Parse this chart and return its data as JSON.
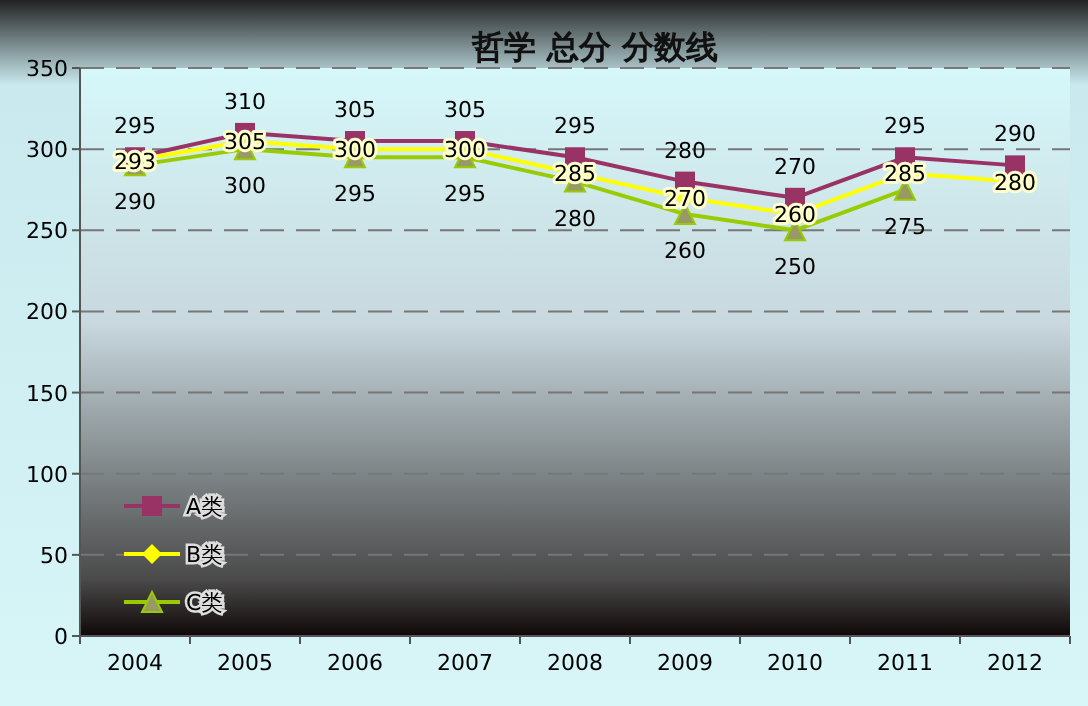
{
  "chart_data": {
    "type": "line",
    "title": "哲学    总分    分数线",
    "categories": [
      "2004",
      "2005",
      "2006",
      "2007",
      "2008",
      "2009",
      "2010",
      "2011",
      "2012"
    ],
    "series": [
      {
        "name": "A类",
        "color": "#993366",
        "marker": "square",
        "values": [
          295,
          310,
          305,
          305,
          295,
          280,
          270,
          295,
          290
        ]
      },
      {
        "name": "B类",
        "color": "#ffff00",
        "marker": "diamond",
        "values": [
          293,
          305,
          300,
          300,
          285,
          270,
          260,
          285,
          280
        ]
      },
      {
        "name": "C类",
        "color": "#99cc00",
        "marker": "triangle",
        "values": [
          290,
          300,
          295,
          295,
          280,
          260,
          250,
          275,
          null
        ]
      }
    ],
    "ylim": [
      0,
      350
    ],
    "yticks": [
      0,
      50,
      100,
      150,
      200,
      250,
      300,
      350
    ],
    "grid": "y",
    "legend": "bottom left",
    "data_labels": true
  }
}
